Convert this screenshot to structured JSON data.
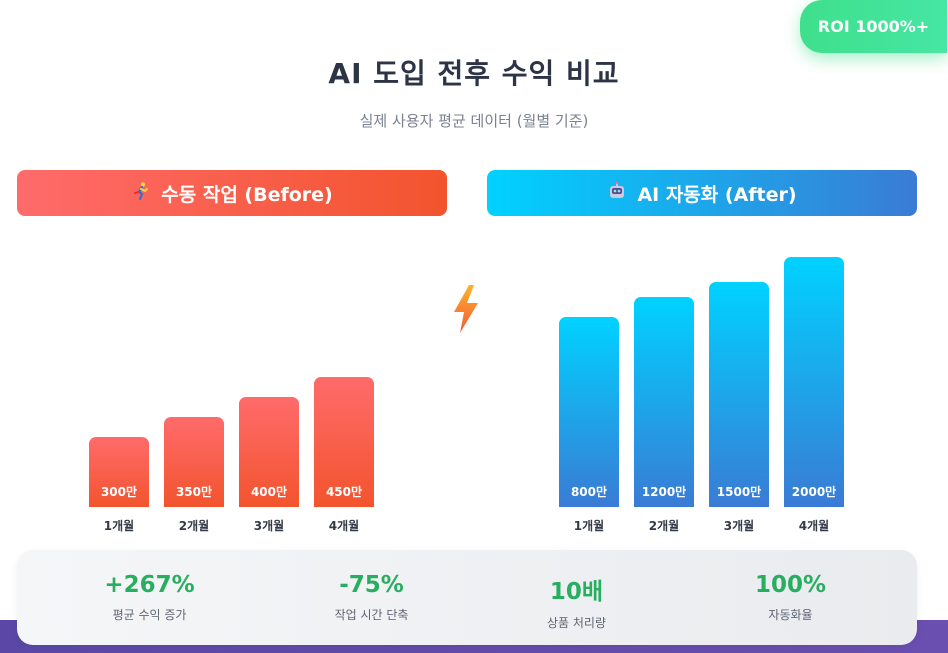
{
  "badge": "ROI 1000%+",
  "chart_data": [
    {
      "type": "bar",
      "title": "AI 도입 전후 수익 비교",
      "subtitle": "실제 사용자 평균 데이터 (월별 기준)",
      "panel_title": "수동 작업 (Before)",
      "panel_icon": "person-running-icon",
      "categories": [
        "1개월",
        "2개월",
        "3개월",
        "4개월"
      ],
      "values": [
        300,
        350,
        400,
        450
      ],
      "value_labels": [
        "300만",
        "350만",
        "400만",
        "450만"
      ],
      "colors": [
        "#ff6b6b",
        "#f2542d"
      ]
    },
    {
      "type": "bar",
      "panel_title": "AI 자동화 (After)",
      "panel_icon": "robot-icon",
      "categories": [
        "1개월",
        "2개월",
        "3개월",
        "4개월"
      ],
      "values": [
        800,
        1200,
        1500,
        2000
      ],
      "value_labels": [
        "800만",
        "1200만",
        "1500만",
        "2000만"
      ],
      "colors": [
        "#00d2ff",
        "#3a7bd5"
      ]
    }
  ],
  "stats": [
    {
      "value": "+267%",
      "label": "평균 수익 증가"
    },
    {
      "value": "-75%",
      "label": "작업 시간 단축"
    },
    {
      "value": "10배",
      "label": "상품 처리량"
    },
    {
      "value": "100%",
      "label": "자동화율"
    }
  ],
  "accent_color": "#27ae60"
}
